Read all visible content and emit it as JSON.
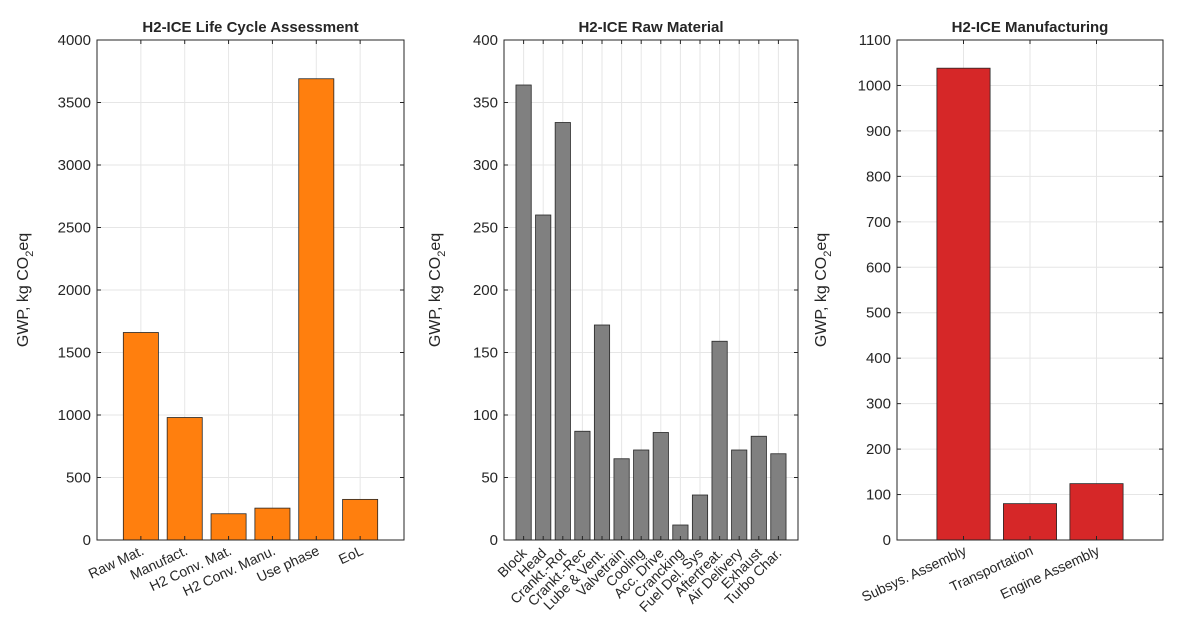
{
  "chart_data": [
    {
      "type": "bar",
      "title": "H2-ICE Life Cycle Assessment",
      "ylabel": "GWP, kg CO_2eq",
      "ylim": [
        0,
        4000
      ],
      "yticks": [
        0,
        500,
        1000,
        1500,
        2000,
        2500,
        3000,
        3500,
        4000
      ],
      "categories": [
        "Raw Mat.",
        "Manufact.",
        "H2 Conv. Mat.",
        "H2 Conv. Manu.",
        "Use phase",
        "EoL"
      ],
      "values": [
        1660,
        980,
        210,
        255,
        3690,
        325
      ],
      "color": "#ff7f0e",
      "grid": true
    },
    {
      "type": "bar",
      "title": "H2-ICE Raw Material",
      "ylabel": "GWP, kg CO_2eq",
      "ylim": [
        0,
        400
      ],
      "yticks": [
        0,
        50,
        100,
        150,
        200,
        250,
        300,
        350,
        400
      ],
      "categories": [
        "Block",
        "Head",
        "Crankt.-Rot",
        "Crankt.-Rec",
        "Lube & Vent.",
        "Valvetrain",
        "Cooling",
        "Acc. Drive",
        "Crancking",
        "Fuel Del. Sys",
        "Aftertreat.",
        "Air Delivery",
        "Exhaust",
        "Turbo Char."
      ],
      "values": [
        364,
        260,
        334,
        87,
        172,
        65,
        72,
        86,
        12,
        36,
        159,
        72,
        83,
        69
      ],
      "color": "#808080",
      "grid": true
    },
    {
      "type": "bar",
      "title": "H2-ICE Manufacturing",
      "ylabel": "GWP, kg CO_2eq",
      "ylim": [
        0,
        1100
      ],
      "yticks": [
        0,
        100,
        200,
        300,
        400,
        500,
        600,
        700,
        800,
        900,
        1000,
        1100
      ],
      "categories": [
        "Subsys. Assembly",
        "Transportation",
        "Engine Assembly"
      ],
      "values": [
        1038,
        80,
        124
      ],
      "color": "#d62728",
      "grid": true
    }
  ]
}
